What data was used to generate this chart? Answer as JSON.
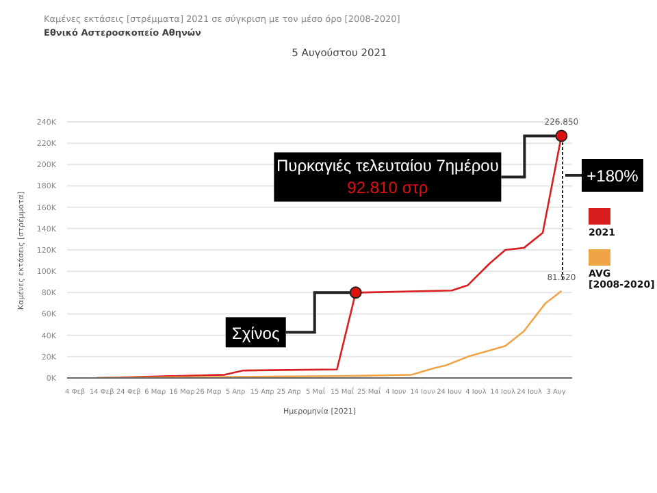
{
  "chart_data": {
    "type": "line",
    "title": "Καμένες εκτάσεις [στρέμματα] 2021 σε σύγκριση με τον μέσο όρο [2008-2020]",
    "subtitle": "5 Αυγούστου 2021",
    "xlabel": "Ημερομηνία [2021]",
    "ylabel": "Καμένες εκτάσεις [στρέμματα]",
    "series": [
      {
        "name": "2021",
        "color": "#d81e1e",
        "x": [
          "2021-02-12",
          "2021-02-28",
          "2021-04-01",
          "2021-04-08",
          "2021-05-13",
          "2021-05-20",
          "2021-06-25",
          "2021-07-01",
          "2021-07-09",
          "2021-07-15",
          "2021-07-22",
          "2021-07-29",
          "2021-08-05"
        ],
        "values": [
          0,
          1000,
          3000,
          7000,
          8000,
          80000,
          82000,
          87000,
          107000,
          120000,
          122000,
          136000,
          226850
        ],
        "value_labels": [
          null,
          null,
          null,
          null,
          null,
          null,
          null,
          null,
          null,
          null,
          null,
          null,
          "226.850"
        ]
      },
      {
        "name": "AVG\n[2008-2020]",
        "color": "#f0a448",
        "x": [
          "2021-02-12",
          "2021-04-01",
          "2021-05-20",
          "2021-06-10",
          "2021-06-18",
          "2021-06-23",
          "2021-07-01",
          "2021-07-15",
          "2021-07-22",
          "2021-07-30",
          "2021-08-05"
        ],
        "values": [
          0,
          1000,
          2000,
          3000,
          9000,
          12000,
          20000,
          30000,
          44000,
          70000,
          81520
        ],
        "value_labels": [
          null,
          null,
          null,
          null,
          null,
          null,
          null,
          null,
          null,
          null,
          "81.520"
        ]
      }
    ],
    "xlim": [
      "2021-02-01",
      "2021-08-09"
    ],
    "xticks": [
      {
        "value": "2021-02-04",
        "label": "4 Φεβ"
      },
      {
        "value": "2021-02-14",
        "label": "14 Φεβ"
      },
      {
        "value": "2021-02-24",
        "label": "24 Φεβ"
      },
      {
        "value": "2021-03-06",
        "label": "6 Μαρ"
      },
      {
        "value": "2021-03-16",
        "label": "16 Μαρ"
      },
      {
        "value": "2021-03-26",
        "label": "26 Μαρ"
      },
      {
        "value": "2021-04-05",
        "label": "5 Απρ"
      },
      {
        "value": "2021-04-15",
        "label": "15 Απρ"
      },
      {
        "value": "2021-04-25",
        "label": "25 Απρ"
      },
      {
        "value": "2021-05-05",
        "label": "5 Μαΐ"
      },
      {
        "value": "2021-05-15",
        "label": "15 Μαΐ"
      },
      {
        "value": "2021-05-25",
        "label": "25 Μαΐ"
      },
      {
        "value": "2021-06-04",
        "label": "4 Ιουν"
      },
      {
        "value": "2021-06-14",
        "label": "14 Ιουν"
      },
      {
        "value": "2021-06-24",
        "label": "24 Ιουν"
      },
      {
        "value": "2021-07-04",
        "label": "4 Ιουλ"
      },
      {
        "value": "2021-07-14",
        "label": "14 Ιουλ"
      },
      {
        "value": "2021-07-24",
        "label": "24 Ιουλ"
      },
      {
        "value": "2021-08-03",
        "label": "3 Αυγ"
      }
    ],
    "ylim": [
      0,
      240000
    ],
    "yticks": [
      {
        "value": 0,
        "label": "0K"
      },
      {
        "value": 20000,
        "label": "20K"
      },
      {
        "value": 40000,
        "label": "40K"
      },
      {
        "value": 60000,
        "label": "60K"
      },
      {
        "value": 80000,
        "label": "80K"
      },
      {
        "value": 100000,
        "label": "100K"
      },
      {
        "value": 120000,
        "label": "120K"
      },
      {
        "value": 140000,
        "label": "140K"
      },
      {
        "value": 160000,
        "label": "160K"
      },
      {
        "value": 180000,
        "label": "180K"
      },
      {
        "value": 200000,
        "label": "200K"
      },
      {
        "value": 220000,
        "label": "220K"
      },
      {
        "value": 240000,
        "label": "240K"
      }
    ],
    "grid": "y",
    "legend": "right",
    "marker": "none",
    "line_style": "solid",
    "annotations": [
      {
        "text": "Σχίνος",
        "x": "2021-05-20",
        "y": 80000
      },
      {
        "text": "Πυρκαγιές τελευταίου 7ημέρου\n92.810 στρ",
        "x": "2021-08-05",
        "y": 226850
      },
      "+180%",
      "Εθνικό Αστεροσκοπείο Αθηνών"
    ]
  }
}
